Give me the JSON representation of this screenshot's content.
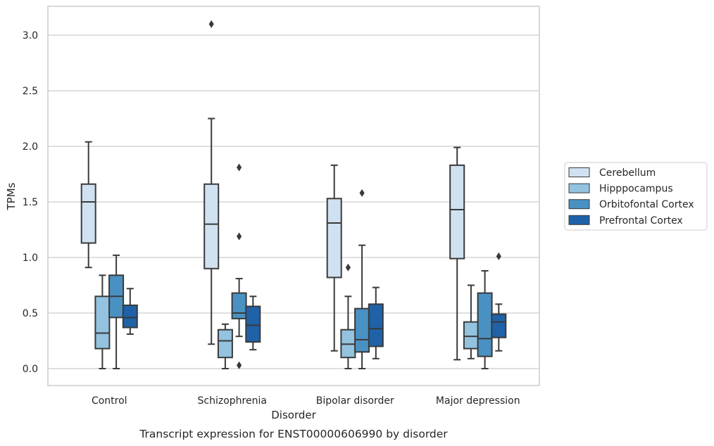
{
  "chart_data": {
    "type": "boxplot",
    "title": "",
    "caption": "Transcript expression for ENST00000606990 by disorder",
    "xlabel": "Disorder",
    "ylabel": "TPMs",
    "ylim": [
      -0.15,
      3.25
    ],
    "yticks": [
      0.0,
      0.5,
      1.0,
      1.5,
      2.0,
      2.5,
      3.0
    ],
    "ytick_labels": [
      "0.0",
      "0.5",
      "1.0",
      "1.5",
      "2.0",
      "2.5",
      "3.0"
    ],
    "grid": "horizontal",
    "legend_placement": "right, outside plot",
    "categories": [
      "Control",
      "Schizophrenia",
      "Bipolar disorder",
      "Major depression"
    ],
    "series": [
      {
        "name": "Cerebellum",
        "color": "#d0e1f1",
        "boxes": [
          {
            "q1": 1.13,
            "median": 1.5,
            "q3": 1.66,
            "whisker_low": 0.91,
            "whisker_high": 2.04,
            "outliers": []
          },
          {
            "q1": 0.9,
            "median": 1.3,
            "q3": 1.66,
            "whisker_low": 0.22,
            "whisker_high": 2.25,
            "outliers": [
              3.1
            ]
          },
          {
            "q1": 0.82,
            "median": 1.31,
            "q3": 1.53,
            "whisker_low": 0.16,
            "whisker_high": 1.83,
            "outliers": []
          },
          {
            "q1": 0.99,
            "median": 1.43,
            "q3": 1.83,
            "whisker_low": 0.08,
            "whisker_high": 1.99,
            "outliers": []
          }
        ]
      },
      {
        "name": "Hipppocampus",
        "color": "#93c3df",
        "boxes": [
          {
            "q1": 0.18,
            "median": 0.32,
            "q3": 0.65,
            "whisker_low": 0.0,
            "whisker_high": 0.84,
            "outliers": []
          },
          {
            "q1": 0.1,
            "median": 0.25,
            "q3": 0.35,
            "whisker_low": 0.0,
            "whisker_high": 0.4,
            "outliers": []
          },
          {
            "q1": 0.1,
            "median": 0.22,
            "q3": 0.35,
            "whisker_low": 0.0,
            "whisker_high": 0.65,
            "outliers": [
              0.91
            ]
          },
          {
            "q1": 0.18,
            "median": 0.29,
            "q3": 0.42,
            "whisker_low": 0.09,
            "whisker_high": 0.75,
            "outliers": []
          }
        ]
      },
      {
        "name": "Orbitofontal Cortex",
        "color": "#4a91c3",
        "boxes": [
          {
            "q1": 0.46,
            "median": 0.65,
            "q3": 0.84,
            "whisker_low": 0.0,
            "whisker_high": 1.02,
            "outliers": []
          },
          {
            "q1": 0.45,
            "median": 0.5,
            "q3": 0.68,
            "whisker_low": 0.29,
            "whisker_high": 0.81,
            "outliers": [
              1.81,
              1.19,
              0.03
            ]
          },
          {
            "q1": 0.15,
            "median": 0.26,
            "q3": 0.54,
            "whisker_low": 0.0,
            "whisker_high": 1.11,
            "outliers": [
              1.58
            ]
          },
          {
            "q1": 0.11,
            "median": 0.27,
            "q3": 0.68,
            "whisker_low": 0.0,
            "whisker_high": 0.88,
            "outliers": []
          }
        ]
      },
      {
        "name": "Prefrontal Cortex",
        "color": "#1f62a8",
        "boxes": [
          {
            "q1": 0.37,
            "median": 0.46,
            "q3": 0.57,
            "whisker_low": 0.31,
            "whisker_high": 0.72,
            "outliers": []
          },
          {
            "q1": 0.24,
            "median": 0.39,
            "q3": 0.56,
            "whisker_low": 0.17,
            "whisker_high": 0.65,
            "outliers": []
          },
          {
            "q1": 0.2,
            "median": 0.36,
            "q3": 0.58,
            "whisker_low": 0.09,
            "whisker_high": 0.73,
            "outliers": []
          },
          {
            "q1": 0.28,
            "median": 0.42,
            "q3": 0.49,
            "whisker_low": 0.16,
            "whisker_high": 0.58,
            "outliers": [
              1.01
            ]
          }
        ]
      }
    ]
  },
  "line_color": "#3a3a3a",
  "grid_color": "#cccccc"
}
